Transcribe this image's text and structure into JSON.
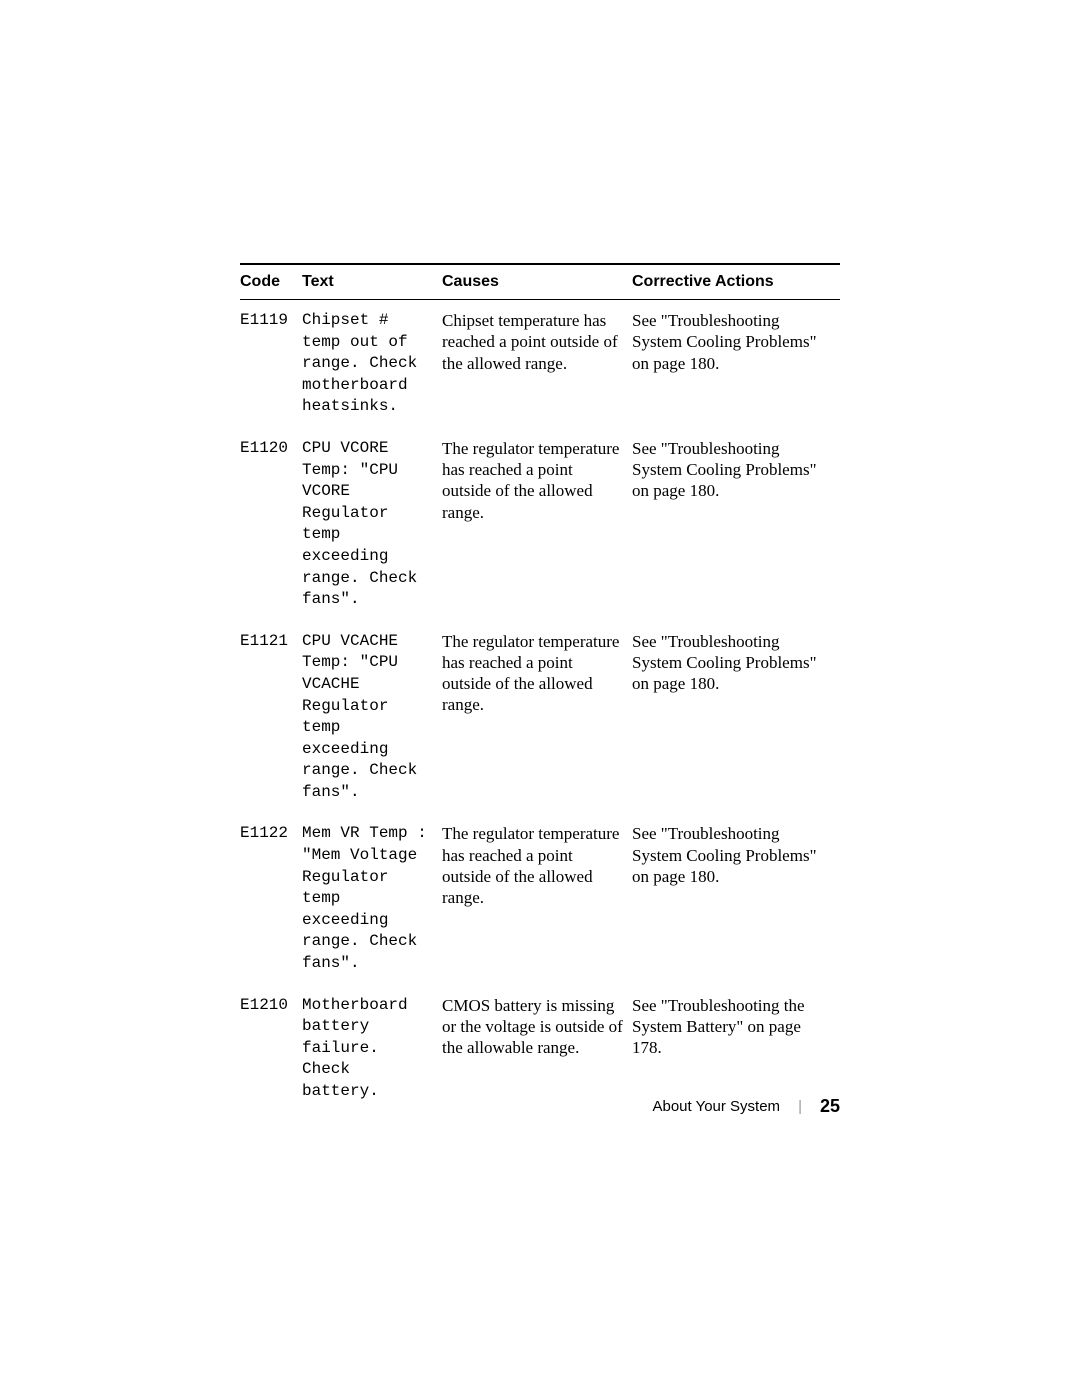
{
  "table": {
    "headers": {
      "code": "Code",
      "text": "Text",
      "causes": "Causes",
      "actions": "Corrective Actions"
    },
    "rows": [
      {
        "code": "E1119",
        "text": "Chipset #\ntemp out of\nrange. Check\nmotherboard\nheatsinks.",
        "causes": "Chipset temperature has reached a point outside of the allowed range.",
        "actions": "See \"Troubleshooting System Cooling Problems\" on page 180."
      },
      {
        "code": "E1120",
        "text": "CPU VCORE\nTemp: \"CPU\nVCORE\nRegulator\ntemp\nexceeding\nrange. Check\nfans\".",
        "causes": "The regulator temperature has reached a point outside of the allowed range.",
        "actions": "See \"Troubleshooting System Cooling Problems\" on page 180."
      },
      {
        "code": "E1121",
        "text": "CPU VCACHE\nTemp: \"CPU\nVCACHE\nRegulator\ntemp\nexceeding\nrange. Check\nfans\".",
        "causes": "The regulator temperature has reached a point outside of the allowed range.",
        "actions": "See \"Troubleshooting System Cooling Problems\" on page 180."
      },
      {
        "code": "E1122",
        "text": "Mem VR Temp :\n\"Mem Voltage\nRegulator\ntemp\nexceeding\nrange. Check\nfans\".",
        "causes": "The regulator temperature has reached a point outside of the allowed range.",
        "actions": "See \"Troubleshooting System Cooling Problems\" on page 180."
      },
      {
        "code": "E1210",
        "text": "Motherboard\nbattery\nfailure.\nCheck\nbattery.",
        "causes": "CMOS battery is missing or the voltage is outside of the allowable range.",
        "actions": "See \"Troubleshooting the System Battery\" on page 178."
      }
    ]
  },
  "footer": {
    "section": "About Your System",
    "page": "25"
  }
}
